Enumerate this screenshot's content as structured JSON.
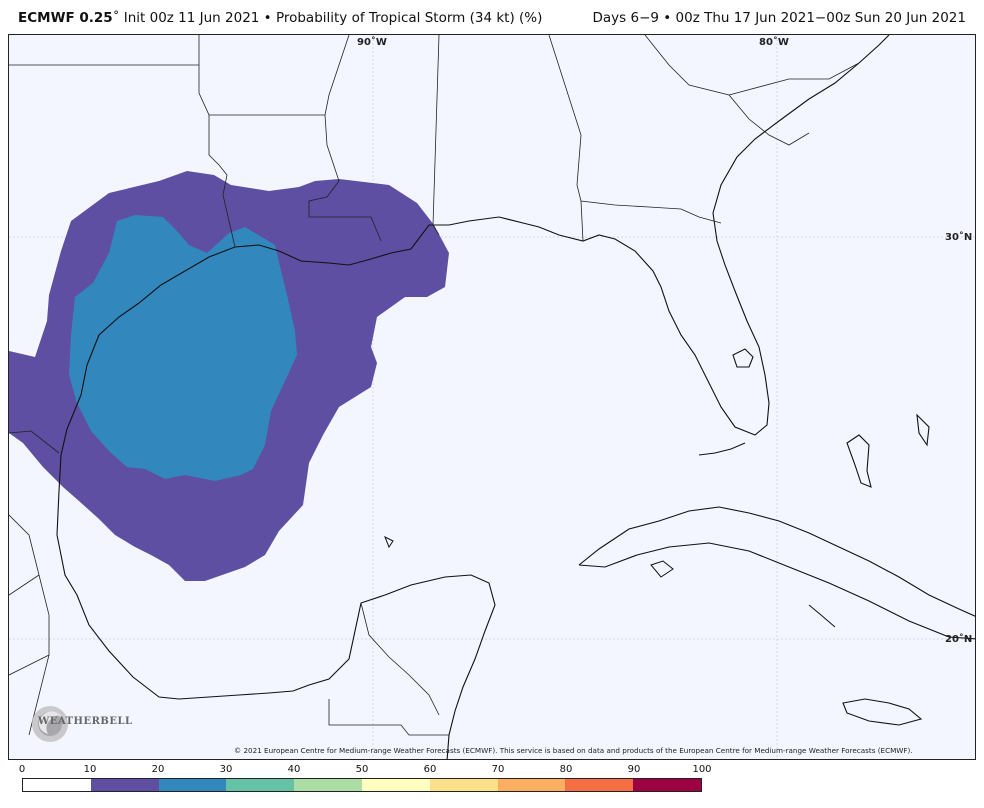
{
  "header": {
    "model": "ECMWF 0.25",
    "degree_symbol": "˚",
    "init": "Init 00z 11 Jun 2021",
    "bullet": "•",
    "product": "Probability of Tropical Storm (34 kt) (%)",
    "valid": "Days 6−9 • 00z Thu 17 Jun 2021−00z Sun 20 Jun 2021"
  },
  "map_labels": {
    "lon_90": "90˚W",
    "lon_80": "80˚W",
    "lat_30": "30˚N",
    "lat_20": "20˚N"
  },
  "copyright": "© 2021 European Centre for Medium-range Weather Forecasts (ECMWF). This service is based on data and products of the European Centre for Medium-range Weather Forecasts (ECMWF).",
  "logo": {
    "text": "WEATHERBELL",
    "icon": "weatherbell-swirl-icon"
  },
  "colorbar": {
    "ticks": [
      "0",
      "10",
      "20",
      "30",
      "40",
      "50",
      "60",
      "70",
      "80",
      "90",
      "100"
    ],
    "colors": [
      "#ffffff",
      "#5e4fa2",
      "#3288bd",
      "#66c2a5",
      "#abdda4",
      "#ffffbf",
      "#fee08b",
      "#fdae61",
      "#f46d43",
      "#9e0142"
    ]
  },
  "probability_areas": {
    "outer_band": "10-20%",
    "inner_band": "20-30%",
    "outer_color": "#5e4fa2",
    "inner_color": "#3288bd"
  }
}
